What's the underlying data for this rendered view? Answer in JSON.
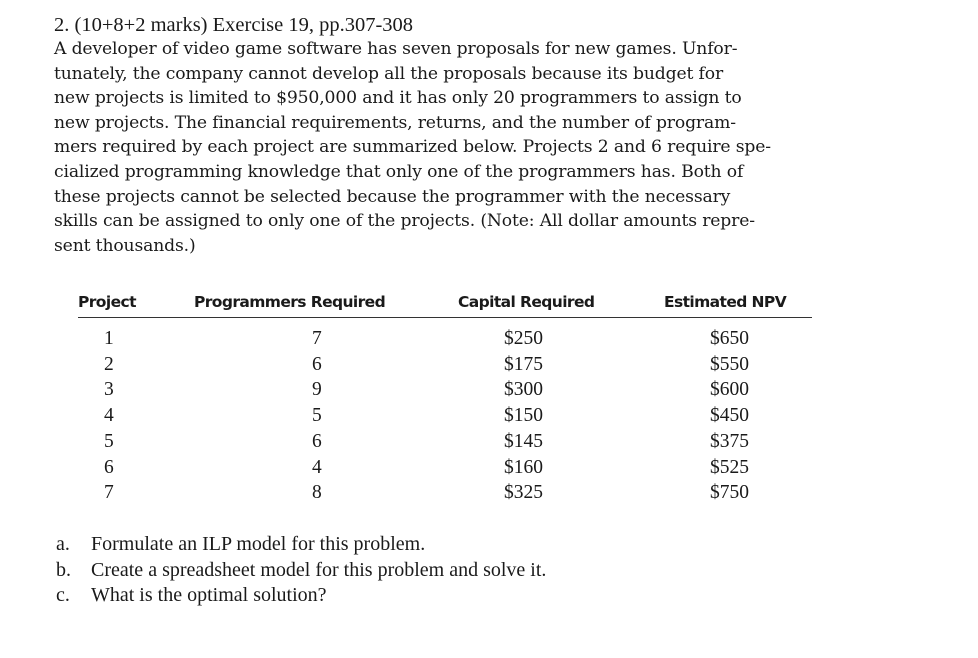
{
  "question": {
    "heading": "2.  (10+8+2 marks) Exercise 19, pp.307-308",
    "paragraph_lines": [
      "A developer of video game software has seven proposals for new games. Unfor-",
      "tunately, the company cannot develop all the proposals because its budget for",
      "new projects is limited to $950,000 and it has only 20 programmers to assign to",
      "new projects. The financial requirements, returns, and the number of program-",
      "mers required by each project are summarized below. Projects 2 and 6 require spe-",
      "cialized programming knowledge that only one of the programmers has. Both of",
      "these projects cannot be selected because the programmer with the necessary",
      "skills can be assigned to only one of the projects. (Note: All dollar amounts repre-",
      "sent thousands.)"
    ]
  },
  "table": {
    "headers": [
      "Project",
      "Programmers Required",
      "Capital Required",
      "Estimated NPV"
    ],
    "rows": [
      [
        "1",
        "7",
        "$250",
        "$650"
      ],
      [
        "2",
        "6",
        "$175",
        "$550"
      ],
      [
        "3",
        "9",
        "$300",
        "$600"
      ],
      [
        "4",
        "5",
        "$150",
        "$450"
      ],
      [
        "5",
        "6",
        "$145",
        "$375"
      ],
      [
        "6",
        "4",
        "$160",
        "$525"
      ],
      [
        "7",
        "8",
        "$325",
        "$750"
      ]
    ]
  },
  "tasks": [
    {
      "label": "a.",
      "text": "Formulate an ILP model for this problem."
    },
    {
      "label": "b.",
      "text": "Create a spreadsheet model for this problem and solve it."
    },
    {
      "label": "c.",
      "text": "What is the optimal solution?"
    }
  ]
}
